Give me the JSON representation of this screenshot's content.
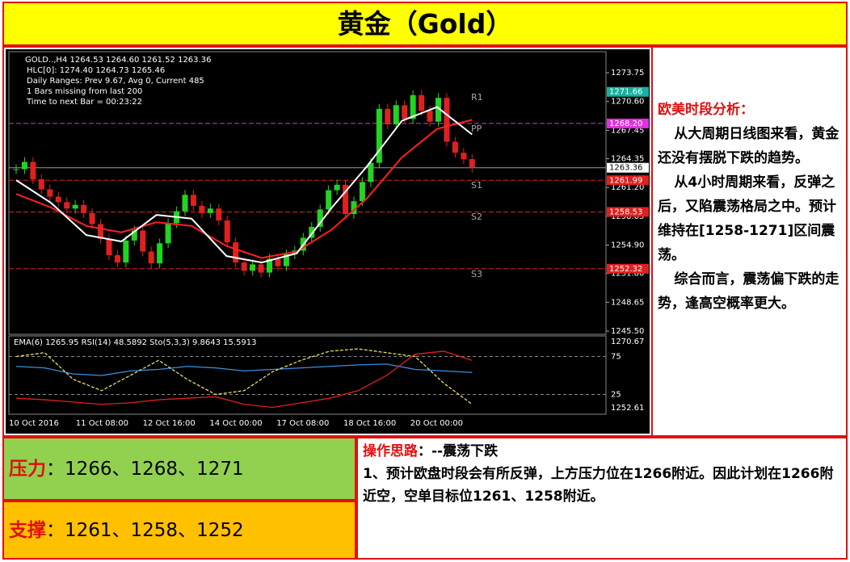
{
  "header": {
    "title": "黄金（Gold）"
  },
  "chart_data": {
    "type": "candlestick",
    "info_lines": [
      "GOLD..,H4  1264.53 1264.60 1261.52 1263.36",
      "HLC[0]: 1274.40 1264.73 1265.46",
      "Daily Ranges:  Prev 9.67,  Avg 0,  Current 485",
      "1 Bars missing from last 200",
      "Time to next Bar = 00:23:22"
    ],
    "ylim": [
      1245.15,
      1276.05
    ],
    "yticks": [
      1273.75,
      {
        "value": 1270.6,
        "label": "1270.60"
      },
      1267.45,
      1264.35,
      {
        "value": 1261.2,
        "label": "1261.20"
      },
      1258.05,
      {
        "value": 1254.9,
        "label": "1254.90"
      },
      {
        "value": 1251.8,
        "label": "1251.80"
      },
      1248.65,
      {
        "value": 1245.5,
        "label": "1245.50"
      }
    ],
    "close": [
      1263.2,
      1264.0,
      1262.1,
      1261.0,
      1260.2,
      1259.6,
      1258.9,
      1259.3,
      1258.4,
      1257.2,
      1255.6,
      1253.8,
      1253.0,
      1255.4,
      1256.5,
      1254.2,
      1252.9,
      1255.1,
      1257.3,
      1258.6,
      1260.4,
      1259.2,
      1258.4,
      1258.9,
      1257.6,
      1255.2,
      1253.0,
      1252.1,
      1252.8,
      1251.9,
      1253.4,
      1252.6,
      1253.9,
      1254.3,
      1255.7,
      1256.9,
      1258.8,
      1260.9,
      1261.5,
      1258.3,
      1259.7,
      1261.8,
      1263.9,
      1269.8,
      1268.1,
      1270.2,
      1268.7,
      1271.3,
      1269.6,
      1268.4,
      1271.0,
      1266.2,
      1265.0,
      1264.3,
      1263.36
    ],
    "up_color": "#22d422",
    "down_color": "#e02020",
    "moving_averages": [
      {
        "color": "#ff2020",
        "values": [
          1260.5,
          1259.0,
          1257.0,
          1256.3,
          1257.4,
          1257.0,
          1254.8,
          1253.5,
          1254.2,
          1256.6,
          1260.0,
          1264.5,
          1267.6,
          1268.6
        ]
      },
      {
        "color": "#ffffff",
        "values": [
          1262.0,
          1259.5,
          1256.0,
          1255.3,
          1258.2,
          1257.8,
          1253.7,
          1253.0,
          1254.0,
          1259.0,
          1263.5,
          1268.5,
          1270.0,
          1267.0
        ]
      }
    ],
    "current": {
      "value": 1263.36,
      "label": "1263.36"
    },
    "levels": [
      {
        "value": 1271.66,
        "label": "1271.66",
        "color": "#18b0a0",
        "line": false
      },
      {
        "value": 1268.2,
        "label": "1268.20",
        "color": "#e030e0",
        "line": true
      },
      {
        "value": 1261.99,
        "label": "1261.99",
        "color": "#e02020",
        "line": true
      },
      {
        "value": 1258.53,
        "label": "1258.53",
        "color": "#e02020",
        "line": true
      },
      {
        "value": 1252.32,
        "label": "1252.32",
        "color": "#e02020",
        "line": true
      }
    ],
    "pivot_labels": [
      "R1",
      "PP",
      "S1",
      "S2",
      "S3"
    ],
    "date_labels": [
      "10 Oct 2016",
      "11 Oct 08:00",
      "12 Oct 16:00",
      "14 Oct 00:00",
      "17 Oct 08:00",
      "18 Oct 16:00",
      "20 Oct 00:00"
    ],
    "indicator": {
      "label": "EMA(6) 1265.95  RSI(14) 48.5892  Sto(5,3,3) 9.8643 15.5913",
      "ylim": [
        0,
        100
      ],
      "yticks": [
        75,
        25
      ],
      "edge_labels": [
        1270.67,
        1252.61
      ],
      "series": [
        {
          "color": "#3a8fe0",
          "dash": false,
          "values": [
            62,
            60,
            52,
            50,
            56,
            58,
            62,
            60,
            56,
            58,
            60,
            62,
            64,
            65,
            58,
            56,
            54
          ]
        },
        {
          "color": "#e8e060",
          "dash": true,
          "values": [
            75,
            80,
            45,
            30,
            50,
            70,
            45,
            25,
            30,
            55,
            70,
            82,
            85,
            80,
            75,
            40,
            12
          ]
        },
        {
          "color": "#e02020",
          "dash": false,
          "values": [
            20,
            18,
            15,
            12,
            14,
            18,
            20,
            22,
            12,
            8,
            14,
            20,
            30,
            50,
            78,
            82,
            70
          ]
        }
      ]
    }
  },
  "analysis": {
    "heading": "欧美时段分析：",
    "paragraphs": [
      "从大周期日线图来看，黄金还没有摆脱下跌的趋势。",
      "从4小时周期来看，反弹之后，又陷震荡格局之中。预计维持在[1258-1271]区间震荡。",
      "综合而言，震荡偏下跌的走势，逢高空概率更大。"
    ]
  },
  "resistance": {
    "label": "压力",
    "text": "：1266、1268、1271"
  },
  "support": {
    "label": "支撑",
    "text": "：1261、1258、1252"
  },
  "strategy": {
    "label": "操作思路",
    "text": "：--震荡下跌",
    "body": "1、预计欧盘时段会有所反弹，上方压力位在1266附近。因此计划在1266附近空，空单目标位1261、1258附近。"
  }
}
